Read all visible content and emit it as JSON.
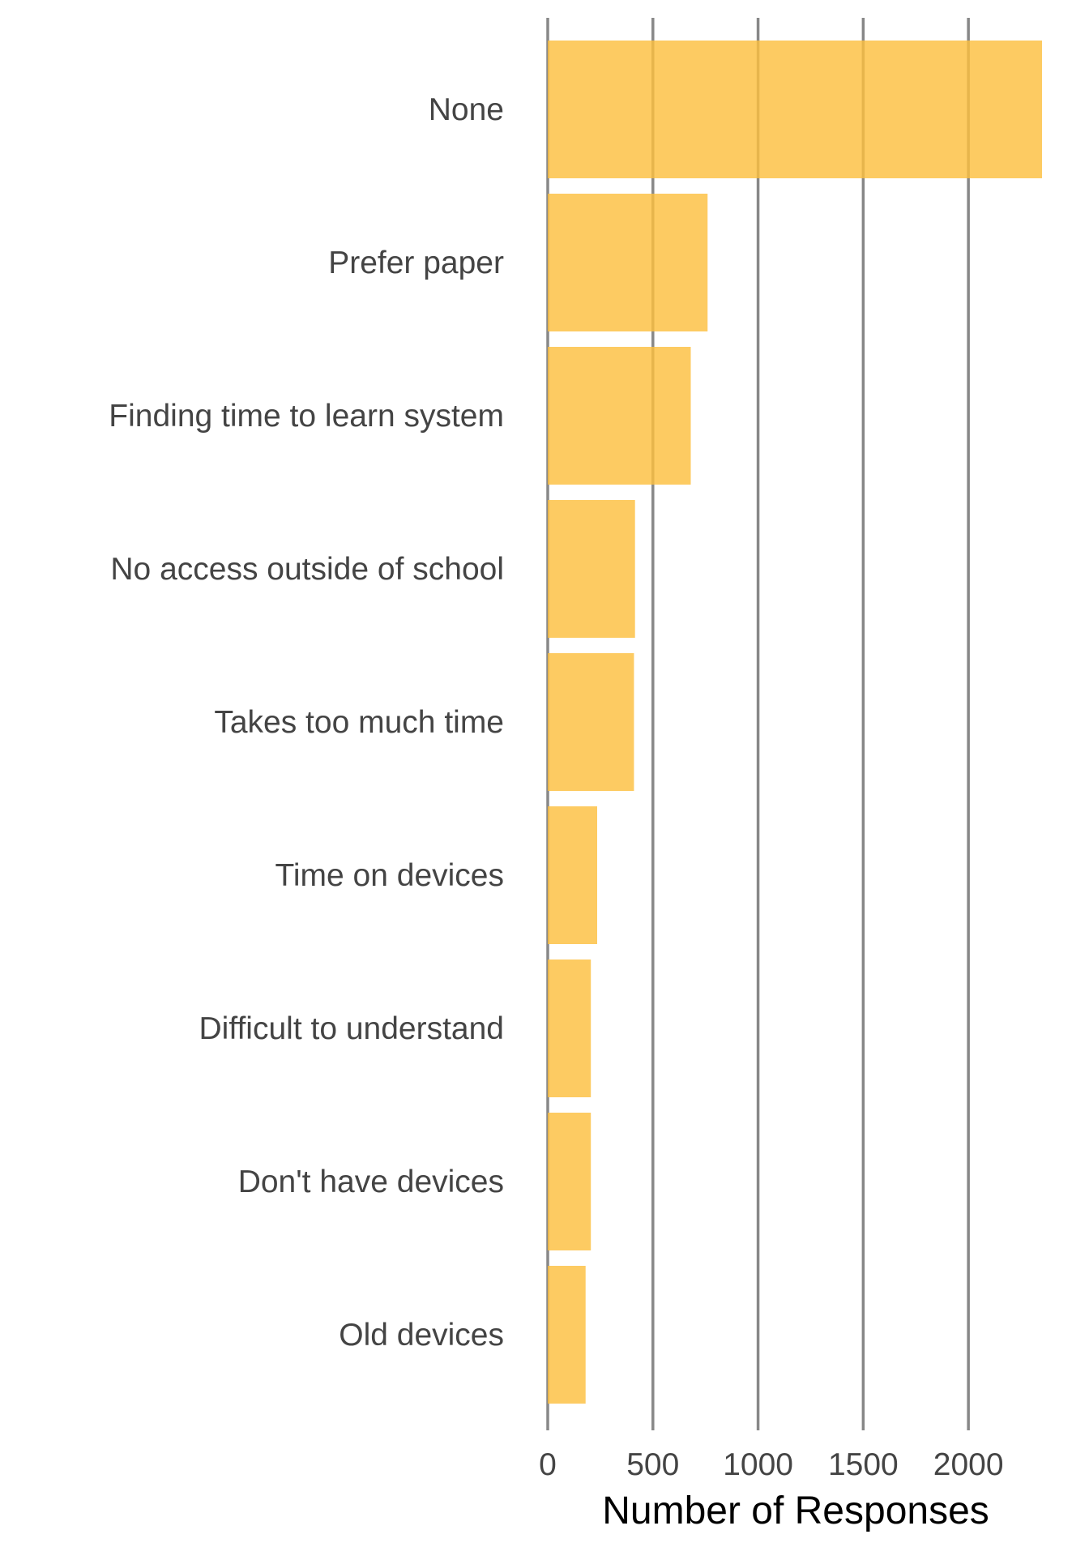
{
  "chart_data": {
    "type": "bar",
    "orientation": "horizontal",
    "categories": [
      "None",
      "Prefer paper",
      "Finding time to learn system",
      "No access outside of school",
      "Takes too much time",
      "Time on devices",
      "Difficult to understand",
      "Don't have devices",
      "Old devices"
    ],
    "values": [
      2350,
      760,
      680,
      415,
      410,
      235,
      205,
      205,
      180
    ],
    "xlabel": "Number of Responses",
    "ylabel": "",
    "x_ticks": [
      0,
      500,
      1000,
      1500,
      2000
    ],
    "xlim": [
      0,
      2350
    ],
    "grid": "vertical major gridlines",
    "legend": "none",
    "colors": {
      "bar": "#fdbf3f",
      "grid": "#888888",
      "tick_text": "#444444",
      "title_text": "#000000"
    }
  }
}
